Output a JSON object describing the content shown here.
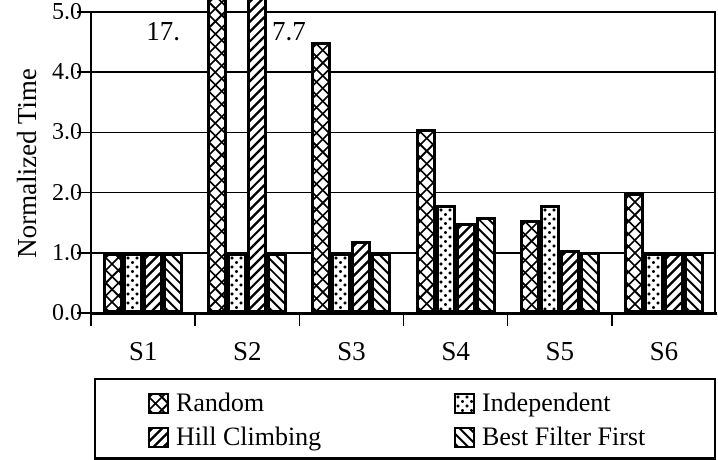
{
  "colors": {
    "ink": "#000000",
    "background": "#ffffff"
  },
  "chart_data": {
    "type": "bar",
    "title": "",
    "xlabel": "",
    "ylabel": "Normalized Time",
    "ylim": [
      0,
      5
    ],
    "yticks": [
      "0.0",
      "1.0",
      "2.0",
      "3.0",
      "4.0",
      "5.0"
    ],
    "grid": true,
    "legend_position": "bottom-box",
    "categories": [
      "S1",
      "S2",
      "S3",
      "S4",
      "S5",
      "S6"
    ],
    "series": [
      {
        "name": "Random",
        "pattern": "crosshatch",
        "values": [
          1.0,
          17.0,
          4.5,
          3.05,
          1.55,
          2.0
        ]
      },
      {
        "name": "Independent",
        "pattern": "dots",
        "values": [
          1.0,
          1.0,
          1.0,
          1.8,
          1.8,
          1.0
        ]
      },
      {
        "name": "Hill Climbing",
        "pattern": "diag-forward",
        "values": [
          1.0,
          7.7,
          1.2,
          1.5,
          1.05,
          1.0
        ]
      },
      {
        "name": "Best Filter First",
        "pattern": "diag-backward",
        "values": [
          1.0,
          1.0,
          1.0,
          1.6,
          1.02,
          1.0
        ]
      }
    ],
    "annotations": [
      {
        "text": "17.",
        "category": "S2",
        "series": "Random",
        "x": 110,
        "y": 16,
        "width": 70,
        "align": "right"
      },
      {
        "text": "7.7",
        "category": "S2",
        "series": "Hill Climbing",
        "x": 272,
        "y": 16,
        "width": 70,
        "align": "left"
      }
    ]
  }
}
